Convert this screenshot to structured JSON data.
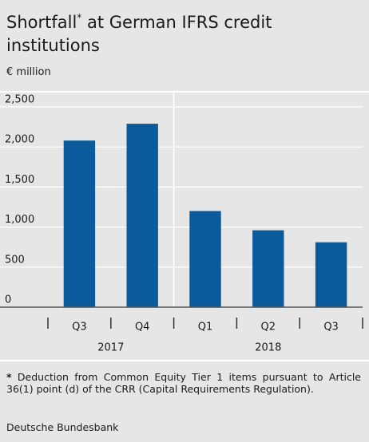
{
  "chart_data": {
    "type": "bar",
    "title": "Shortfall",
    "title_marker": "*",
    "title_rest": " at German IFRS credit institutions",
    "subtitle": "€ million",
    "color": "#0a5a9c",
    "groups": [
      {
        "label": "2017",
        "categories": [
          "Q3",
          "Q4"
        ],
        "values": [
          2080,
          2290
        ]
      },
      {
        "label": "2018",
        "categories": [
          "Q1",
          "Q2",
          "Q3"
        ],
        "values": [
          1200,
          960,
          810
        ]
      }
    ],
    "ylim": [
      0,
      2500
    ],
    "yticks": [
      0,
      500,
      {
        "value": 1000,
        "label": "1,000"
      },
      {
        "value": 1500,
        "label": "1,500"
      },
      {
        "value": 2000,
        "label": "2,000"
      },
      {
        "value": 2500,
        "label": "2,500"
      }
    ],
    "grid": true,
    "footnote_marker": "*",
    "footnote": " Deduction from Common Equity Tier 1 items pursuant to Article 36(1) point (d) of the CRR (Capital Requirements Regulation).",
    "source": "Deutsche Bundesbank"
  }
}
